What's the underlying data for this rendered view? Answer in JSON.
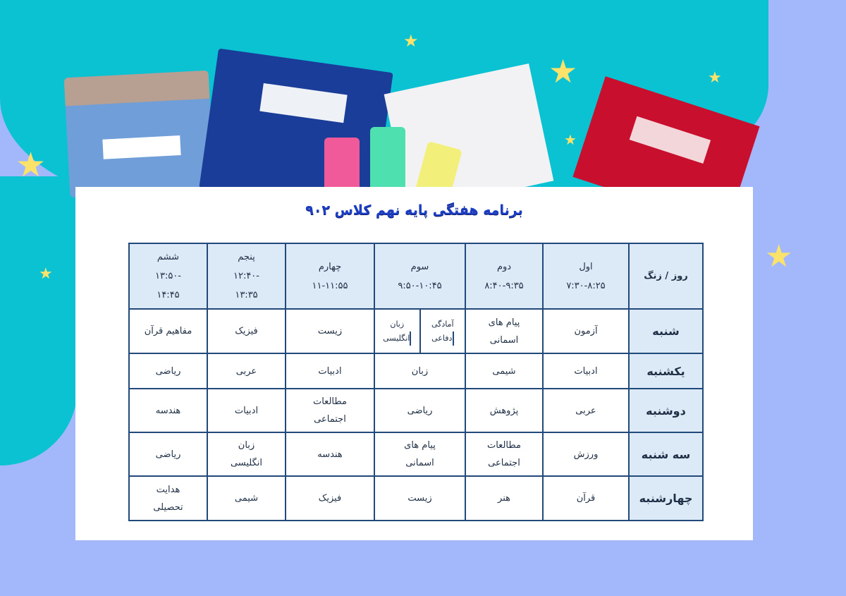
{
  "title": "برنامه هفتگی پایه نهم کلاس ۹۰۲",
  "corner_header": "روز / زنگ",
  "periods": [
    {
      "name": "اول",
      "time": [
        "۷:۳۰-۸:۲۵"
      ]
    },
    {
      "name": "دوم",
      "time": [
        "۸:۴۰-۹:۳۵"
      ]
    },
    {
      "name": "سوم",
      "time": [
        "۹:۵۰-۱۰:۴۵"
      ]
    },
    {
      "name": "چهارم",
      "time": [
        "۱۱-۱۱:۵۵"
      ]
    },
    {
      "name": "پنجم",
      "time": [
        "-۱۲:۴۰",
        "۱۳:۳۵"
      ]
    },
    {
      "name": "ششم",
      "time": [
        "-۱۳:۵۰",
        "۱۴:۴۵"
      ]
    }
  ],
  "rows": [
    {
      "day": "شنبه",
      "cells": [
        [
          "آزمون"
        ],
        [
          "پیام های",
          "اسمانی"
        ],
        {
          "split": [
            [
              "آمادگی",
              "دفاعی"
            ],
            [
              "زبان",
              "انگلیسی"
            ]
          ]
        },
        [
          "زیست"
        ],
        [
          "فیزیک"
        ],
        [
          "مفاهیم قرآن"
        ]
      ]
    },
    {
      "day": "یکشنبه",
      "cells": [
        [
          "ادبیات"
        ],
        [
          "شیمی"
        ],
        [
          "زبان"
        ],
        [
          "ادبیات"
        ],
        [
          "عربی"
        ],
        [
          "ریاضی"
        ]
      ]
    },
    {
      "day": "دوشنبه",
      "cells": [
        [
          "عربی"
        ],
        [
          "پژوهش"
        ],
        [
          "ریاضی"
        ],
        [
          "مطالعات",
          "اجتماعی"
        ],
        [
          "ادبیات"
        ],
        [
          "هندسه"
        ]
      ]
    },
    {
      "day": "سه شنبه",
      "cells": [
        [
          "ورزش"
        ],
        [
          "مطالعات",
          "اجتماعی"
        ],
        [
          "پیام های",
          "اسمانی"
        ],
        [
          "هندسه"
        ],
        [
          "زبان",
          "انگلیسی"
        ],
        [
          "ریاضی"
        ]
      ]
    },
    {
      "day": "چهارشنبه",
      "cells": [
        [
          "قرآن"
        ],
        [
          "هنر"
        ],
        [
          "زیست"
        ],
        [
          "فیزیک"
        ],
        [
          "شیمی"
        ],
        [
          "هدایت",
          "تحصیلی"
        ]
      ]
    }
  ],
  "colors": {
    "title": "#1c3ec4",
    "header_bg": "#dce9f7",
    "border": "#21497a",
    "teal": "#0bc2d3",
    "background": "#a3b8fb"
  }
}
